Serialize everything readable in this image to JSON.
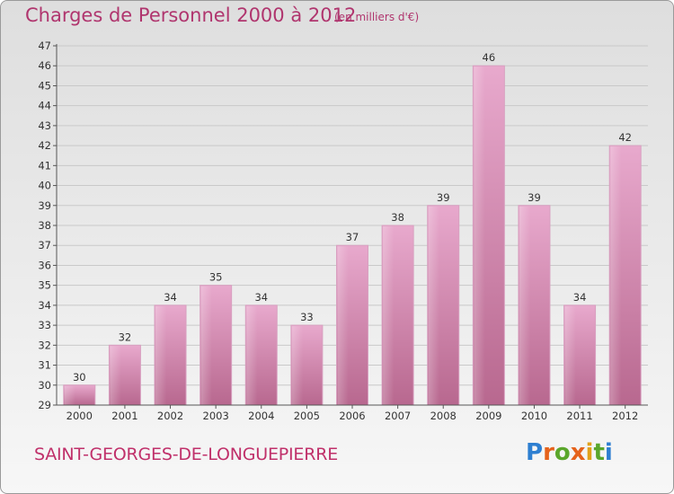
{
  "title": "Charges de Personnel 2000 à 2012",
  "subtitle": "(en milliers d'€)",
  "commune": "SAINT-GEORGES-DE-LONGUEPIERRE",
  "logo": {
    "p": "P",
    "r": "r",
    "o": "o",
    "x": "x",
    "i1": "i",
    "t": "t",
    "i2": "i"
  },
  "colors": {
    "bar_light": "#e8a9cd",
    "bar_dark": "#b8688f",
    "title": "#b0356e",
    "grid": "#c9c9c9"
  },
  "chart_data": {
    "type": "bar",
    "categories": [
      "2000",
      "2001",
      "2002",
      "2003",
      "2004",
      "2005",
      "2006",
      "2007",
      "2008",
      "2009",
      "2010",
      "2011",
      "2012"
    ],
    "values": [
      30,
      32,
      34,
      35,
      34,
      33,
      37,
      38,
      39,
      46,
      39,
      34,
      42
    ],
    "title": "Charges de Personnel 2000 à 2012",
    "ylim": [
      29,
      47
    ],
    "yticks": [
      29,
      30,
      31,
      32,
      33,
      34,
      35,
      36,
      37,
      38,
      39,
      40,
      41,
      42,
      43,
      44,
      45,
      46,
      47
    ],
    "grid": true,
    "data_labels": true
  }
}
